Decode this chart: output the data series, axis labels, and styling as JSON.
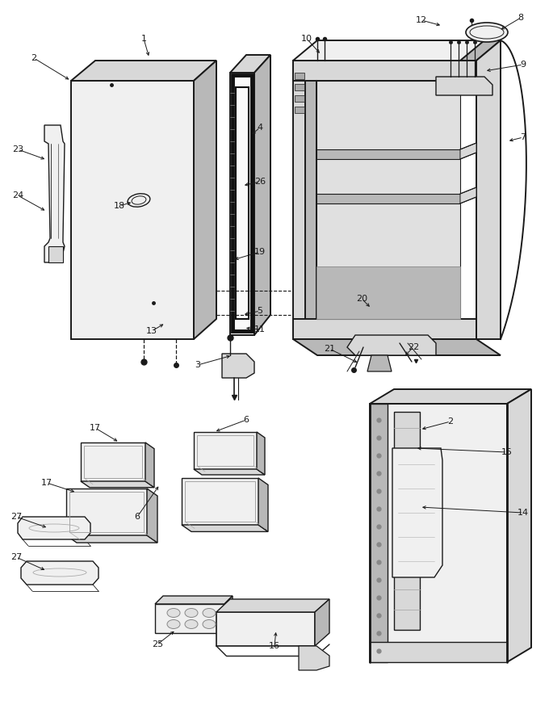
{
  "bg_color": "#ffffff",
  "lc": "#1a1a1a",
  "lw_main": 1.4,
  "lw_thin": 0.8,
  "gray_fill": "#f0f0f0",
  "gray_mid": "#d8d8d8",
  "gray_dark": "#b8b8b8",
  "label_fs": 8
}
